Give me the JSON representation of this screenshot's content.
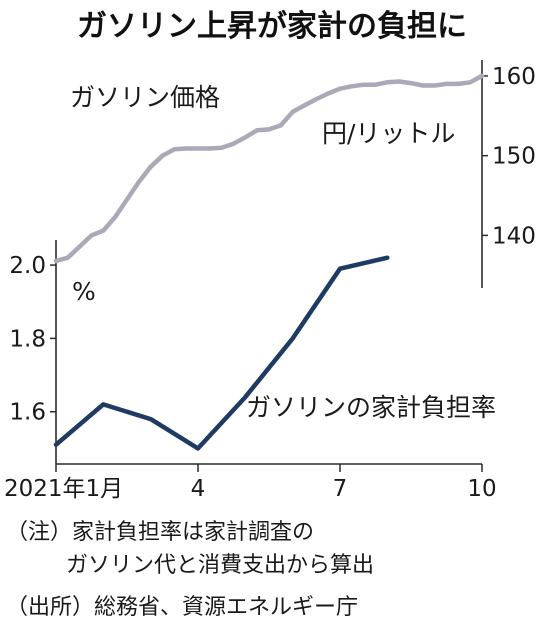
{
  "title": "ガソリン上昇が家計の負担に",
  "colors": {
    "price_line": "#a9a9b8",
    "burden_line": "#1f3a63",
    "axis": "#2b2b2b"
  },
  "chart_data": {
    "type": "line",
    "x_ticks": [
      "2021年1月",
      "4",
      "7",
      "10"
    ],
    "x_tick_months": [
      1,
      4,
      7,
      10
    ],
    "xlim": [
      1,
      10
    ],
    "grid": false,
    "series": [
      {
        "name": "ガソリン価格",
        "axis": "right",
        "unit": "円/リットル",
        "x": [
          1,
          1.25,
          1.5,
          1.75,
          2,
          2.25,
          2.5,
          2.75,
          3,
          3.25,
          3.5,
          3.75,
          4,
          4.25,
          4.5,
          4.75,
          5,
          5.25,
          5.5,
          5.75,
          6,
          6.25,
          6.5,
          6.75,
          7,
          7.25,
          7.5,
          7.75,
          8,
          8.25,
          8.5,
          8.75,
          9,
          9.25,
          9.5,
          9.75,
          10
        ],
        "values": [
          136.8,
          137.2,
          138.6,
          140.0,
          140.6,
          142.3,
          144.5,
          146.7,
          148.6,
          150.0,
          150.8,
          150.9,
          150.9,
          150.9,
          151.0,
          151.5,
          152.3,
          153.2,
          153.3,
          153.8,
          155.5,
          156.3,
          157.1,
          157.8,
          158.4,
          158.7,
          158.9,
          158.9,
          159.2,
          159.3,
          159.1,
          158.8,
          158.8,
          159.0,
          159.0,
          159.2,
          160.0
        ]
      },
      {
        "name": "ガソリンの家計負担率",
        "axis": "left",
        "unit": "%",
        "x": [
          1,
          2,
          3,
          4,
          5,
          6,
          7,
          8
        ],
        "values": [
          1.51,
          1.62,
          1.58,
          1.5,
          1.64,
          1.8,
          1.99,
          2.02
        ]
      }
    ],
    "y_left": {
      "ticks": [
        1.6,
        1.8,
        2.0
      ],
      "tick_labels": [
        "1.6",
        "1.8",
        "2.0"
      ],
      "ylim": [
        1.4574,
        2.0684
      ],
      "unit_label": "%"
    },
    "y_right": {
      "ticks": [
        140,
        150,
        160
      ],
      "tick_labels": [
        "140",
        "150",
        "160"
      ],
      "ylim": [
        133.4,
        162.0
      ],
      "unit_label": "円/リットル"
    }
  },
  "notes": [
    "（注）家計負担率は家計調査の",
    "ガソリン代と消費支出から算出",
    "（出所）総務省、資源エネルギー庁"
  ]
}
